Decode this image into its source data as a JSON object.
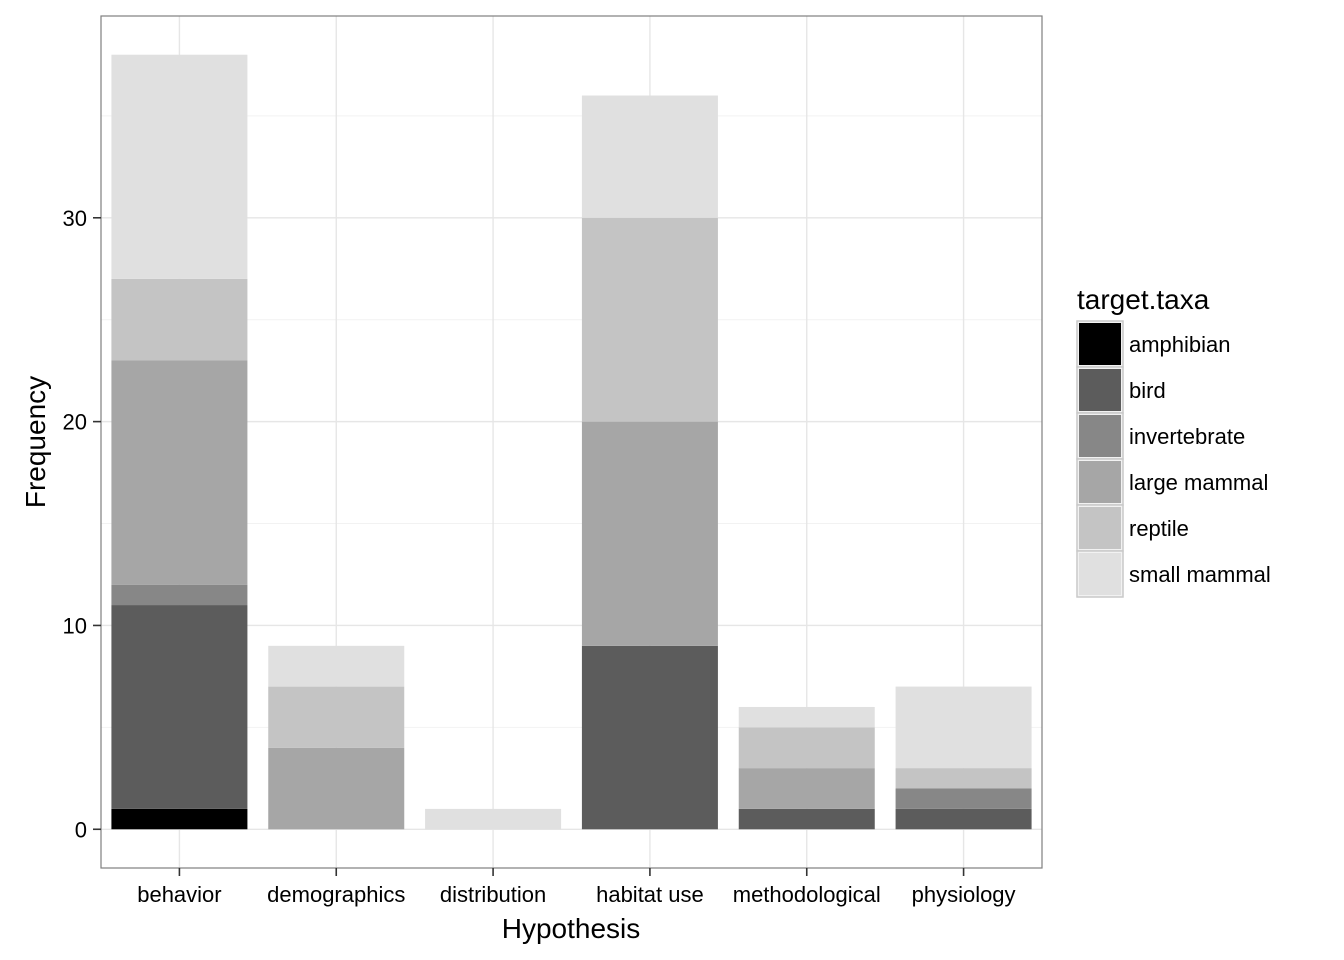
{
  "chart_data": {
    "type": "bar",
    "stacked": true,
    "xlabel": "Hypothesis",
    "ylabel": "Frequency",
    "categories": [
      "behavior",
      "demographics",
      "distribution",
      "habitat use",
      "methodological",
      "physiology"
    ],
    "ylim": [
      -1.9,
      39.9
    ],
    "yticks": [
      0,
      10,
      20,
      30
    ],
    "grid": true,
    "legend": {
      "title": "target.taxa",
      "position": "right"
    },
    "series": [
      {
        "name": "amphibian",
        "color": "#000000",
        "values": [
          1,
          0,
          0,
          0,
          0,
          0
        ]
      },
      {
        "name": "bird",
        "color": "#5c5c5c",
        "values": [
          10,
          0,
          0,
          9,
          1,
          1
        ]
      },
      {
        "name": "invertebrate",
        "color": "#878787",
        "values": [
          1,
          0,
          0,
          0,
          0,
          1
        ]
      },
      {
        "name": "large mammal",
        "color": "#a6a6a6",
        "values": [
          11,
          4,
          0,
          11,
          2,
          0
        ]
      },
      {
        "name": "reptile",
        "color": "#c4c4c4",
        "values": [
          4,
          3,
          0,
          10,
          2,
          1
        ]
      },
      {
        "name": "small mammal",
        "color": "#e0e0e0",
        "values": [
          11,
          2,
          1,
          6,
          1,
          4
        ]
      }
    ]
  }
}
